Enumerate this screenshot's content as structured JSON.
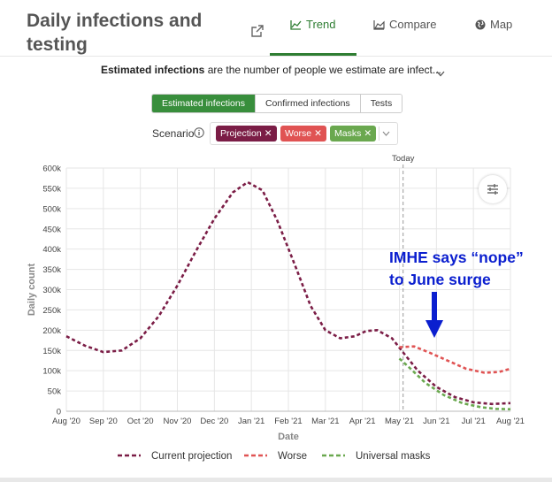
{
  "header": {
    "title": "Daily infections and testing",
    "tabs": [
      {
        "label": "Trend",
        "active": true,
        "icon": "line-chart-icon"
      },
      {
        "label": "Compare",
        "active": false,
        "icon": "area-chart-icon"
      },
      {
        "label": "Map",
        "active": false,
        "icon": "globe-icon"
      }
    ]
  },
  "description": {
    "bold": "Estimated infections",
    "rest": " are the number of people we estimate are infect..."
  },
  "metric_buttons": [
    {
      "label": "Estimated infections",
      "active": true
    },
    {
      "label": "Confirmed infections",
      "active": false
    },
    {
      "label": "Tests",
      "active": false
    }
  ],
  "scenario": {
    "label": "Scenario",
    "chips": [
      {
        "label": "Projection",
        "color": "#7b1d46"
      },
      {
        "label": "Worse",
        "color": "#e05353"
      },
      {
        "label": "Masks",
        "color": "#6aa84f"
      }
    ]
  },
  "annotation": {
    "text": "IMHE says “nope”\nto June surge",
    "color": "#0b1fcf"
  },
  "chart_data": {
    "type": "line",
    "xlabel": "Date",
    "ylabel": "Daily count",
    "x_ticks": [
      "Aug '20",
      "Sep '20",
      "Oct '20",
      "Nov '20",
      "Dec '20",
      "Jan '21",
      "Feb '21",
      "Mar '21",
      "Apr '21",
      "May '21",
      "Jun '21",
      "Jul '21",
      "Aug '21"
    ],
    "y_ticks": [
      "0",
      "50k",
      "100k",
      "150k",
      "200k",
      "250k",
      "300k",
      "350k",
      "400k",
      "450k",
      "500k",
      "550k",
      "600k"
    ],
    "ylim": [
      0,
      600000
    ],
    "today_label": "Today",
    "today_month": 9.1,
    "grid": true,
    "legend_position": "bottom",
    "series": [
      {
        "name": "Current projection",
        "color": "#7b1d46",
        "points": [
          [
            0.0,
            185000
          ],
          [
            0.5,
            162000
          ],
          [
            1.0,
            146000
          ],
          [
            1.5,
            150000
          ],
          [
            2.0,
            180000
          ],
          [
            2.5,
            235000
          ],
          [
            3.0,
            310000
          ],
          [
            3.5,
            395000
          ],
          [
            4.0,
            475000
          ],
          [
            4.5,
            540000
          ],
          [
            4.9,
            565000
          ],
          [
            5.3,
            545000
          ],
          [
            5.7,
            470000
          ],
          [
            6.2,
            355000
          ],
          [
            6.6,
            260000
          ],
          [
            7.0,
            200000
          ],
          [
            7.4,
            180000
          ],
          [
            7.8,
            185000
          ],
          [
            8.1,
            198000
          ],
          [
            8.4,
            200000
          ],
          [
            8.8,
            180000
          ],
          [
            9.1,
            145000
          ],
          [
            9.5,
            100000
          ],
          [
            10.0,
            60000
          ],
          [
            10.5,
            35000
          ],
          [
            11.0,
            22000
          ],
          [
            11.5,
            18000
          ],
          [
            12.0,
            20000
          ]
        ]
      },
      {
        "name": "Worse",
        "color": "#e05353",
        "points": [
          [
            9.0,
            158000
          ],
          [
            9.4,
            160000
          ],
          [
            9.8,
            145000
          ],
          [
            10.3,
            125000
          ],
          [
            10.8,
            105000
          ],
          [
            11.3,
            95000
          ],
          [
            11.7,
            97000
          ],
          [
            12.0,
            105000
          ]
        ]
      },
      {
        "name": "Universal masks",
        "color": "#6aa84f",
        "points": [
          [
            9.0,
            130000
          ],
          [
            9.3,
            105000
          ],
          [
            9.7,
            70000
          ],
          [
            10.2,
            40000
          ],
          [
            10.7,
            20000
          ],
          [
            11.2,
            10000
          ],
          [
            11.6,
            6000
          ],
          [
            12.0,
            5000
          ]
        ]
      }
    ]
  }
}
